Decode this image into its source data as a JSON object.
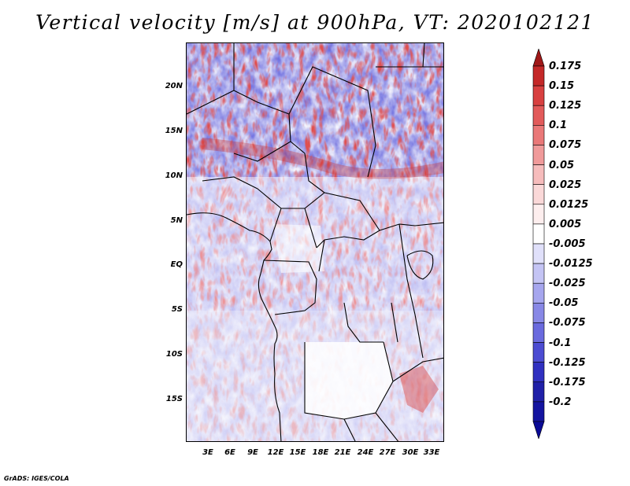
{
  "title": "Vertical velocity [m/s] at 900hPa, VT: 2020102121",
  "credit": "GrADS: IGES/COLA",
  "map": {
    "lat_labels": [
      "20N",
      "15N",
      "10N",
      "5N",
      "EQ",
      "5S",
      "10S",
      "15S"
    ],
    "lon_labels": [
      "3E",
      "6E",
      "9E",
      "12E",
      "15E",
      "18E",
      "21E",
      "24E",
      "27E",
      "30E",
      "33E"
    ]
  },
  "colorbar": {
    "labels": [
      "0.175",
      "0.15",
      "0.125",
      "0.1",
      "0.075",
      "0.05",
      "0.025",
      "0.0125",
      "0.005",
      "-0.005",
      "-0.0125",
      "-0.025",
      "-0.05",
      "-0.075",
      "-0.1",
      "-0.125",
      "-0.175",
      "-0.2"
    ],
    "colors": [
      "#a01818",
      "#c42828",
      "#d84040",
      "#e25a5a",
      "#ea7878",
      "#f09a9a",
      "#f6bcbc",
      "#fad8d8",
      "#fdeeee",
      "#ffffff",
      "#e0e0fa",
      "#c4c4f4",
      "#a6a6ee",
      "#8888e6",
      "#6a6ade",
      "#4c4cd2",
      "#3030c0",
      "#2020a8",
      "#1414a0",
      "#0a0a96"
    ]
  }
}
